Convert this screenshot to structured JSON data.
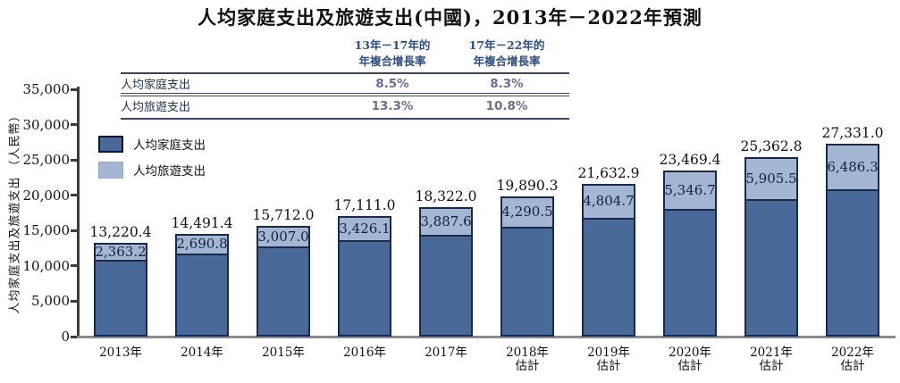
{
  "title": "人均家庭支出及旅遊支出(中國)，2013年－2022年預測",
  "cagr_table": {
    "columns": [
      {
        "line1": "13年－17年的",
        "line2": "年複合增長率"
      },
      {
        "line1": "17年－22年的",
        "line2": "年複合增長率"
      }
    ],
    "rows": [
      {
        "label": "人均家庭支出",
        "values": [
          "8.5%",
          "8.3%"
        ]
      },
      {
        "label": "人均旅遊支出",
        "values": [
          "13.3%",
          "10.8%"
        ]
      }
    ]
  },
  "legend": {
    "items": [
      {
        "label": "人均家庭支出",
        "color": "#4A699B"
      },
      {
        "label": "人均旅遊支出",
        "color": "#A3B6D3"
      }
    ]
  },
  "chart_data": {
    "type": "bar",
    "stacked": true,
    "title": "人均家庭支出及旅遊支出(中國)，2013年－2022年預測",
    "ylabel": "人均家庭支出及旅遊支出 （人民幣）",
    "ylim": [
      0,
      35000
    ],
    "grid": false,
    "legend_position": "upper-left",
    "yticks": [
      {
        "value": 0,
        "label": "0"
      },
      {
        "value": 5000,
        "label": "5,000"
      },
      {
        "value": 10000,
        "label": "10,000"
      },
      {
        "value": 15000,
        "label": "15,000"
      },
      {
        "value": 20000,
        "label": "20,000"
      },
      {
        "value": 25000,
        "label": "25,000"
      },
      {
        "value": 30000,
        "label": "30,000"
      },
      {
        "value": 35000,
        "label": "35,000"
      }
    ],
    "categories": [
      {
        "year": "2013年",
        "note": ""
      },
      {
        "year": "2014年",
        "note": ""
      },
      {
        "year": "2015年",
        "note": ""
      },
      {
        "year": "2016年",
        "note": ""
      },
      {
        "year": "2017年",
        "note": ""
      },
      {
        "year": "2018年",
        "note": "估計"
      },
      {
        "year": "2019年",
        "note": "估計"
      },
      {
        "year": "2020年",
        "note": "估計"
      },
      {
        "year": "2021年",
        "note": "估計"
      },
      {
        "year": "2022年",
        "note": "估計"
      }
    ],
    "series": [
      {
        "name": "人均家庭支出",
        "role": "total-bar",
        "color": "#4A699B",
        "values": [
          13220.4,
          14491.4,
          15712.0,
          17111.0,
          18322.0,
          19890.3,
          21632.9,
          23469.4,
          25362.8,
          27331.0
        ],
        "labels": [
          "13,220.4",
          "14,491.4",
          "15,712.0",
          "17,111.0",
          "18,322.0",
          "19,890.3",
          "21,632.9",
          "23,469.4",
          "25,362.8",
          "27,331.0"
        ]
      },
      {
        "name": "人均旅遊支出",
        "role": "top-segment",
        "color": "#A3B6D3",
        "values": [
          2363.2,
          2690.8,
          3007.0,
          3426.1,
          3887.6,
          4290.5,
          4804.7,
          5346.7,
          5905.5,
          6486.3
        ],
        "labels": [
          "2,363.2",
          "2,690.8",
          "3,007.0",
          "3,426.1",
          "3,887.6",
          "4,290.5",
          "4,804.7",
          "5,346.7",
          "5,905.5",
          "6,486.3"
        ]
      }
    ]
  }
}
